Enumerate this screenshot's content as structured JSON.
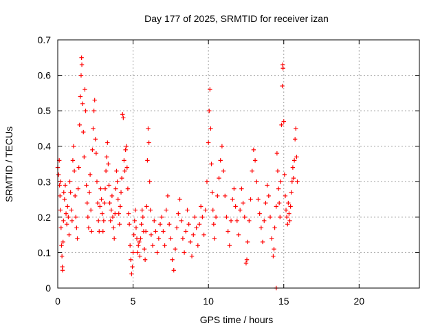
{
  "chart_data": {
    "type": "scatter",
    "title": "Day 177 of 2025, SRMTID for receiver izan",
    "xlabel": "GPS time / hours",
    "ylabel": "SRMTID / TECUs",
    "xlim": [
      0,
      24
    ],
    "ylim": [
      0,
      0.7
    ],
    "xticks": [
      0,
      5,
      10,
      15,
      20
    ],
    "yticks": [
      0,
      0.1,
      0.2,
      0.3,
      0.4,
      0.5,
      0.6,
      0.7
    ],
    "grid": true,
    "marker": "plus",
    "color": "#ff0000",
    "series": [
      {
        "name": "SRMTID",
        "points": [
          [
            0.0,
            0.34
          ],
          [
            0.05,
            0.32
          ],
          [
            0.1,
            0.36
          ],
          [
            0.12,
            0.29
          ],
          [
            0.15,
            0.26
          ],
          [
            0.18,
            0.22
          ],
          [
            0.2,
            0.3
          ],
          [
            0.22,
            0.17
          ],
          [
            0.25,
            0.12
          ],
          [
            0.28,
            0.09
          ],
          [
            0.3,
            0.06
          ],
          [
            0.32,
            0.05
          ],
          [
            0.35,
            0.13
          ],
          [
            0.38,
            0.19
          ],
          [
            0.4,
            0.27
          ],
          [
            0.45,
            0.25
          ],
          [
            0.5,
            0.29
          ],
          [
            0.55,
            0.21
          ],
          [
            0.6,
            0.18
          ],
          [
            0.65,
            0.23
          ],
          [
            0.7,
            0.2
          ],
          [
            0.75,
            0.15
          ],
          [
            0.8,
            0.3
          ],
          [
            0.85,
            0.27
          ],
          [
            0.9,
            0.22
          ],
          [
            0.95,
            0.19
          ],
          [
            1.0,
            0.36
          ],
          [
            1.05,
            0.4
          ],
          [
            1.1,
            0.33
          ],
          [
            1.15,
            0.26
          ],
          [
            1.2,
            0.2
          ],
          [
            1.25,
            0.17
          ],
          [
            1.3,
            0.14
          ],
          [
            1.35,
            0.28
          ],
          [
            1.4,
            0.34
          ],
          [
            1.45,
            0.46
          ],
          [
            1.5,
            0.54
          ],
          [
            1.55,
            0.6
          ],
          [
            1.58,
            0.65
          ],
          [
            1.6,
            0.63
          ],
          [
            1.65,
            0.52
          ],
          [
            1.7,
            0.44
          ],
          [
            1.75,
            0.37
          ],
          [
            1.8,
            0.56
          ],
          [
            1.85,
            0.5
          ],
          [
            1.9,
            0.29
          ],
          [
            1.95,
            0.24
          ],
          [
            2.0,
            0.2
          ],
          [
            2.05,
            0.17
          ],
          [
            2.1,
            0.27
          ],
          [
            2.15,
            0.32
          ],
          [
            2.2,
            0.22
          ],
          [
            2.25,
            0.16
          ],
          [
            2.3,
            0.39
          ],
          [
            2.35,
            0.45
          ],
          [
            2.4,
            0.5
          ],
          [
            2.45,
            0.53
          ],
          [
            2.5,
            0.42
          ],
          [
            2.55,
            0.38
          ],
          [
            2.6,
            0.3
          ],
          [
            2.65,
            0.24
          ],
          [
            2.7,
            0.19
          ],
          [
            2.75,
            0.16
          ],
          [
            2.8,
            0.23
          ],
          [
            2.85,
            0.28
          ],
          [
            2.9,
            0.25
          ],
          [
            2.95,
            0.21
          ],
          [
            3.0,
            0.16
          ],
          [
            3.05,
            0.19
          ],
          [
            3.1,
            0.24
          ],
          [
            3.15,
            0.28
          ],
          [
            3.2,
            0.33
          ],
          [
            3.25,
            0.37
          ],
          [
            3.3,
            0.41
          ],
          [
            3.35,
            0.35
          ],
          [
            3.4,
            0.29
          ],
          [
            3.45,
            0.24
          ],
          [
            3.5,
            0.19
          ],
          [
            3.55,
            0.22
          ],
          [
            3.6,
            0.26
          ],
          [
            3.65,
            0.2
          ],
          [
            3.7,
            0.17
          ],
          [
            3.75,
            0.14
          ],
          [
            3.8,
            0.21
          ],
          [
            3.85,
            0.28
          ],
          [
            3.9,
            0.33
          ],
          [
            3.95,
            0.3
          ],
          [
            4.0,
            0.25
          ],
          [
            4.05,
            0.21
          ],
          [
            4.1,
            0.18
          ],
          [
            4.15,
            0.23
          ],
          [
            4.2,
            0.27
          ],
          [
            4.25,
            0.31
          ],
          [
            4.3,
            0.49
          ],
          [
            4.35,
            0.48
          ],
          [
            4.4,
            0.36
          ],
          [
            4.45,
            0.33
          ],
          [
            4.5,
            0.39
          ],
          [
            4.55,
            0.4
          ],
          [
            4.6,
            0.34
          ],
          [
            4.65,
            0.28
          ],
          [
            4.7,
            0.21
          ],
          [
            4.75,
            0.18
          ],
          [
            4.8,
            0.12
          ],
          [
            4.85,
            0.08
          ],
          [
            4.9,
            0.04
          ],
          [
            4.95,
            0.06
          ],
          [
            5.0,
            0.1
          ],
          [
            5.05,
            0.15
          ],
          [
            5.1,
            0.19
          ],
          [
            5.15,
            0.22
          ],
          [
            5.2,
            0.17
          ],
          [
            5.25,
            0.14
          ],
          [
            5.3,
            0.1
          ],
          [
            5.35,
            0.12
          ],
          [
            5.4,
            0.13
          ],
          [
            5.45,
            0.09
          ],
          [
            5.5,
            0.14
          ],
          [
            5.55,
            0.18
          ],
          [
            5.6,
            0.22
          ],
          [
            5.65,
            0.2
          ],
          [
            5.7,
            0.16
          ],
          [
            5.75,
            0.11
          ],
          [
            5.8,
            0.08
          ],
          [
            5.85,
            0.16
          ],
          [
            5.9,
            0.23
          ],
          [
            5.95,
            0.36
          ],
          [
            6.0,
            0.45
          ],
          [
            6.05,
            0.41
          ],
          [
            6.1,
            0.3
          ],
          [
            6.15,
            0.22
          ],
          [
            6.2,
            0.15
          ],
          [
            6.3,
            0.12
          ],
          [
            6.4,
            0.19
          ],
          [
            6.5,
            0.16
          ],
          [
            6.6,
            0.1
          ],
          [
            6.7,
            0.14
          ],
          [
            6.8,
            0.18
          ],
          [
            6.9,
            0.2
          ],
          [
            7.0,
            0.16
          ],
          [
            7.1,
            0.12
          ],
          [
            7.2,
            0.22
          ],
          [
            7.3,
            0.26
          ],
          [
            7.4,
            0.18
          ],
          [
            7.5,
            0.14
          ],
          [
            7.6,
            0.08
          ],
          [
            7.7,
            0.05
          ],
          [
            7.8,
            0.11
          ],
          [
            7.9,
            0.17
          ],
          [
            8.0,
            0.21
          ],
          [
            8.1,
            0.25
          ],
          [
            8.2,
            0.19
          ],
          [
            8.3,
            0.14
          ],
          [
            8.4,
            0.1
          ],
          [
            8.5,
            0.16
          ],
          [
            8.6,
            0.22
          ],
          [
            8.7,
            0.18
          ],
          [
            8.8,
            0.13
          ],
          [
            8.9,
            0.09
          ],
          [
            9.0,
            0.15
          ],
          [
            9.1,
            0.2
          ],
          [
            9.2,
            0.17
          ],
          [
            9.3,
            0.12
          ],
          [
            9.4,
            0.18
          ],
          [
            9.5,
            0.23
          ],
          [
            9.6,
            0.2
          ],
          [
            9.7,
            0.15
          ],
          [
            9.8,
            0.22
          ],
          [
            9.9,
            0.3
          ],
          [
            10.0,
            0.41
          ],
          [
            10.05,
            0.5
          ],
          [
            10.1,
            0.56
          ],
          [
            10.15,
            0.45
          ],
          [
            10.2,
            0.35
          ],
          [
            10.25,
            0.27
          ],
          [
            10.3,
            0.22
          ],
          [
            10.35,
            0.18
          ],
          [
            10.4,
            0.14
          ],
          [
            10.5,
            0.2
          ],
          [
            10.6,
            0.26
          ],
          [
            10.7,
            0.31
          ],
          [
            10.8,
            0.36
          ],
          [
            10.9,
            0.4
          ],
          [
            11.0,
            0.33
          ],
          [
            11.1,
            0.26
          ],
          [
            11.2,
            0.2
          ],
          [
            11.3,
            0.16
          ],
          [
            11.4,
            0.12
          ],
          [
            11.5,
            0.19
          ],
          [
            11.6,
            0.25
          ],
          [
            11.7,
            0.28
          ],
          [
            11.8,
            0.23
          ],
          [
            11.9,
            0.19
          ],
          [
            12.0,
            0.15
          ],
          [
            12.1,
            0.22
          ],
          [
            12.2,
            0.28
          ],
          [
            12.3,
            0.24
          ],
          [
            12.4,
            0.2
          ],
          [
            12.5,
            0.07
          ],
          [
            12.55,
            0.08
          ],
          [
            12.6,
            0.13
          ],
          [
            12.7,
            0.19
          ],
          [
            12.8,
            0.25
          ],
          [
            12.9,
            0.33
          ],
          [
            13.0,
            0.39
          ],
          [
            13.1,
            0.36
          ],
          [
            13.2,
            0.3
          ],
          [
            13.3,
            0.25
          ],
          [
            13.4,
            0.21
          ],
          [
            13.5,
            0.17
          ],
          [
            13.6,
            0.13
          ],
          [
            13.7,
            0.19
          ],
          [
            13.8,
            0.24
          ],
          [
            13.9,
            0.29
          ],
          [
            14.0,
            0.26
          ],
          [
            14.1,
            0.2
          ],
          [
            14.2,
            0.14
          ],
          [
            14.3,
            0.09
          ],
          [
            14.35,
            0.11
          ],
          [
            14.4,
            0.17
          ],
          [
            14.5,
            0.23
          ],
          [
            14.55,
            0.38
          ],
          [
            14.6,
            0.33
          ],
          [
            14.65,
            0.28
          ],
          [
            14.7,
            0.24
          ],
          [
            14.75,
            0.2
          ],
          [
            14.8,
            0.3
          ],
          [
            14.85,
            0.46
          ],
          [
            14.9,
            0.57
          ],
          [
            14.93,
            0.63
          ],
          [
            14.95,
            0.62
          ],
          [
            15.0,
            0.47
          ],
          [
            15.05,
            0.32
          ],
          [
            15.1,
            0.26
          ],
          [
            15.15,
            0.22
          ],
          [
            15.2,
            0.2
          ],
          [
            15.25,
            0.18
          ],
          [
            15.3,
            0.24
          ],
          [
            15.35,
            0.21
          ],
          [
            15.4,
            0.19
          ],
          [
            15.45,
            0.23
          ],
          [
            15.5,
            0.27
          ],
          [
            15.55,
            0.3
          ],
          [
            15.6,
            0.34
          ],
          [
            15.65,
            0.31
          ],
          [
            15.7,
            0.36
          ],
          [
            15.75,
            0.42
          ],
          [
            15.8,
            0.45
          ],
          [
            15.85,
            0.37
          ],
          [
            15.9,
            0.3
          ],
          [
            14.5,
            0.0
          ]
        ]
      }
    ]
  }
}
